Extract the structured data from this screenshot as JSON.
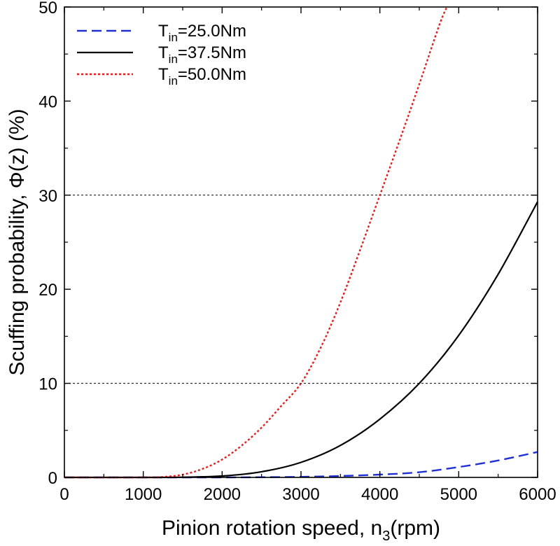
{
  "chart_data": {
    "type": "line",
    "xlabel": {
      "main": "Pinion rotation speed, n",
      "sub": "3",
      "rest": "(rpm)"
    },
    "ylabel": "Scuffing probability, Φ(z) (%)",
    "xlim": [
      0,
      6000
    ],
    "ylim": [
      0,
      50
    ],
    "xticks": [
      0,
      1000,
      2000,
      3000,
      4000,
      5000,
      6000
    ],
    "yticks": [
      0,
      10,
      20,
      30,
      40,
      50
    ],
    "reference_lines": [
      10,
      30
    ],
    "legend_position": "top-left",
    "grid": false,
    "series": [
      {
        "name": "T_in=25.0Nm",
        "legend_main": "T",
        "legend_sub": "in",
        "legend_rest": "=25.0Nm",
        "color": "#1f2fd6",
        "style": "dashed",
        "x": [
          0,
          1000,
          2000,
          2500,
          3000,
          3500,
          4000,
          4500,
          5000,
          5500,
          6000
        ],
        "y": [
          0,
          0,
          0,
          0.02,
          0.06,
          0.15,
          0.3,
          0.55,
          1.1,
          1.8,
          2.7
        ]
      },
      {
        "name": "T_in=37.5Nm",
        "legend_main": "T",
        "legend_sub": "in",
        "legend_rest": "=37.5Nm",
        "color": "#000000",
        "style": "solid",
        "x": [
          0,
          1000,
          1500,
          2000,
          2500,
          3000,
          3500,
          4000,
          4500,
          5000,
          5500,
          6000
        ],
        "y": [
          0,
          0,
          0.02,
          0.15,
          0.6,
          1.6,
          3.4,
          6.2,
          10.0,
          15.1,
          21.6,
          29.3
        ]
      },
      {
        "name": "T_in=50.0Nm",
        "legend_main": "T",
        "legend_sub": "in",
        "legend_rest": "=50.0Nm",
        "color": "#e02020",
        "style": "dotted",
        "x": [
          0,
          1000,
          1250,
          1500,
          1750,
          2000,
          2250,
          2500,
          2750,
          3000,
          3250,
          3500,
          3750,
          4000,
          4250,
          4500,
          4750,
          4850
        ],
        "y": [
          0,
          0,
          0.05,
          0.3,
          0.9,
          1.9,
          3.4,
          5.3,
          7.6,
          10.0,
          13.8,
          18.6,
          24.2,
          30.0,
          35.8,
          41.8,
          48.0,
          50.0
        ]
      }
    ]
  }
}
